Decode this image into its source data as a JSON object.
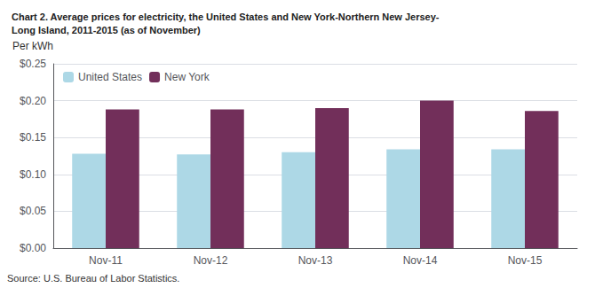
{
  "chart_data": {
    "type": "bar",
    "title": "Chart 2. Average prices for electricity, the United States and New York-Northern New Jersey-\nLong Island, 2011-2015 (as of November)",
    "ylabel": "Per kWh",
    "annotations": [
      "Source: U.S. Bureau of Labor Statistics."
    ],
    "categories": [
      "Nov-11",
      "Nov-12",
      "Nov-13",
      "Nov-14",
      "Nov-15"
    ],
    "series": [
      {
        "name": "United States",
        "color": "#ADD8E6",
        "values": [
          0.128,
          0.127,
          0.13,
          0.134,
          0.134
        ]
      },
      {
        "name": "New York",
        "color": "#722F5A",
        "values": [
          0.188,
          0.188,
          0.19,
          0.2,
          0.186
        ]
      }
    ],
    "ylim": [
      0,
      0.25
    ],
    "yticks": [
      {
        "value": 0.0,
        "label": "$0.00"
      },
      {
        "value": 0.05,
        "label": "$0.05"
      },
      {
        "value": 0.1,
        "label": "$0.10"
      },
      {
        "value": 0.15,
        "label": "$0.15"
      },
      {
        "value": 0.2,
        "label": "$0.20"
      },
      {
        "value": 0.25,
        "label": "$0.25"
      }
    ],
    "grid": true,
    "legend": "upper left"
  }
}
